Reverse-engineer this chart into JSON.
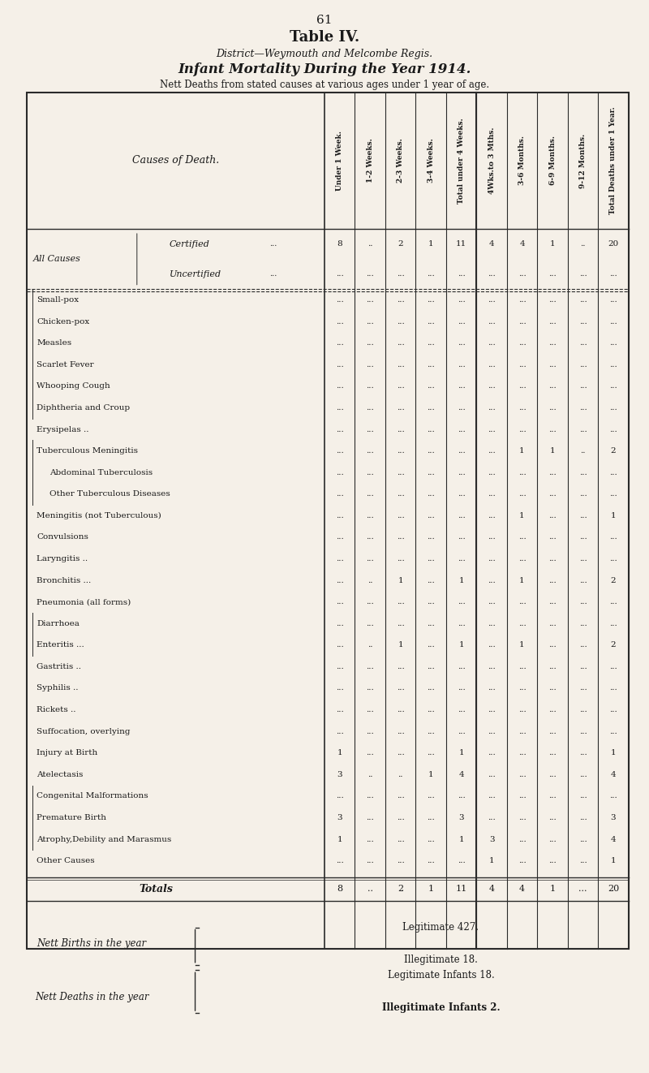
{
  "page_number": "61",
  "title1": "Table IV.",
  "title2": "District—Weymouth and Melcombe Regis.",
  "title3": "Infant Mortality During the Year 1914.",
  "subtitle": "Nett Deaths from stated causes at various ages under 1 year of age.",
  "col_headers": [
    "Under 1 Week.",
    "1-2 Weeks.",
    "2-3 Weeks.",
    "3-4 Weeks.",
    "Total under 4 Weeks.",
    "4Wks.to 3 Mths.",
    "3-6 Months.",
    "6-9 Months.",
    "9-12 Months.",
    "Total Deaths under 1 Year."
  ],
  "rows": [
    {
      "cause": "All Causes",
      "sub": "Certified",
      "dots_before": true,
      "values": [
        "8",
        "..",
        "2",
        "1",
        "11",
        "4",
        "4",
        "1",
        "..",
        "20"
      ]
    },
    {
      "cause": "",
      "sub": "Uncertified",
      "dots_before": true,
      "values": [
        "...",
        "...",
        "...",
        "...",
        "...",
        "...",
        "...",
        "...",
        "...",
        "..."
      ]
    },
    {
      "cause": "Small-pox",
      "sub": "",
      "dots_before": true,
      "values": [
        "...",
        "...",
        "...",
        "...",
        "...",
        "...",
        "...",
        "...",
        "...",
        "..."
      ]
    },
    {
      "cause": "Chicken-pox",
      "sub": "",
      "dots_before": true,
      "values": [
        "...",
        "...",
        "...",
        "...",
        "...",
        "...",
        "...",
        "...",
        "...",
        "..."
      ]
    },
    {
      "cause": "Measles",
      "sub": "",
      "dots_before": true,
      "values": [
        "...",
        "...",
        "...",
        "...",
        "...",
        "...",
        "...",
        "...",
        "...",
        "..."
      ]
    },
    {
      "cause": "Scarlet Fever",
      "sub": "",
      "dots_before": true,
      "values": [
        "...",
        "...",
        "...",
        "...",
        "...",
        "...",
        "...",
        "...",
        "...",
        "..."
      ]
    },
    {
      "cause": "Whooping Cough",
      "sub": "",
      "dots_before": true,
      "values": [
        "...",
        "...",
        "...",
        "...",
        "...",
        "...",
        "...",
        "...",
        "...",
        "..."
      ]
    },
    {
      "cause": "Diphtheria and Croup",
      "sub": "",
      "dots_before": true,
      "values": [
        "...",
        "...",
        "...",
        "...",
        "...",
        "...",
        "...",
        "...",
        "...",
        "..."
      ]
    },
    {
      "cause": "Erysipelas ..",
      "sub": "",
      "dots_before": true,
      "values": [
        "...",
        "...",
        "...",
        "...",
        "...",
        "...",
        "...",
        "...",
        "...",
        "..."
      ]
    },
    {
      "cause": "Tuberculous Meningitis",
      "sub": "",
      "dots_before": true,
      "values": [
        "...",
        "...",
        "...",
        "...",
        "...",
        "...",
        "1",
        "1",
        "..",
        "2"
      ]
    },
    {
      "cause": "Abdominal Tuberculosis",
      "sub": "",
      "dots_before": true,
      "values": [
        "...",
        "...",
        "...",
        "...",
        "...",
        "...",
        "...",
        "...",
        "...",
        "..."
      ]
    },
    {
      "cause": "Other Tuberculous Diseases",
      "sub": "",
      "dots_before": true,
      "values": [
        "...",
        "...",
        "...",
        "...",
        "...",
        "...",
        "...",
        "...",
        "...",
        "..."
      ]
    },
    {
      "cause": "Meningitis (not Tuberculous)",
      "sub": "",
      "dots_before": true,
      "values": [
        "...",
        "...",
        "...",
        "...",
        "...",
        "...",
        "1",
        "...",
        "...",
        "1"
      ]
    },
    {
      "cause": "Convulsions",
      "sub": "",
      "dots_before": true,
      "values": [
        "...",
        "...",
        "...",
        "...",
        "...",
        "...",
        "...",
        "...",
        "...",
        "..."
      ]
    },
    {
      "cause": "Laryngitis ..",
      "sub": "",
      "dots_before": true,
      "values": [
        "...",
        "...",
        "...",
        "...",
        "...",
        "...",
        "...",
        "...",
        "...",
        "..."
      ]
    },
    {
      "cause": "Bronchitis ...",
      "sub": "",
      "dots_before": true,
      "values": [
        "...",
        "..",
        "1",
        "...",
        "1",
        "...",
        "1",
        "...",
        "...",
        "2"
      ]
    },
    {
      "cause": "Pneumonia (all forms)",
      "sub": "",
      "dots_before": true,
      "values": [
        "...",
        "...",
        "...",
        "...",
        "...",
        "...",
        "...",
        "...",
        "...",
        "..."
      ]
    },
    {
      "cause": "Diarrhoea",
      "sub": "",
      "dots_before": true,
      "values": [
        "...",
        "...",
        "...",
        "...",
        "...",
        "...",
        "...",
        "...",
        "...",
        "..."
      ]
    },
    {
      "cause": "Enteritis ...",
      "sub": "",
      "dots_before": true,
      "values": [
        "...",
        "..",
        "1",
        "...",
        "1",
        "...",
        "1",
        "...",
        "...",
        "2"
      ]
    },
    {
      "cause": "Gastritis ..",
      "sub": "",
      "dots_before": true,
      "values": [
        "...",
        "...",
        "...",
        "...",
        "...",
        "...",
        "...",
        "...",
        "...",
        "..."
      ]
    },
    {
      "cause": "Syphilis ..",
      "sub": "",
      "dots_before": true,
      "values": [
        "...",
        "...",
        "...",
        "...",
        "...",
        "...",
        "...",
        "...",
        "...",
        "..."
      ]
    },
    {
      "cause": "Rickets ..",
      "sub": "",
      "dots_before": true,
      "values": [
        "...",
        "...",
        "...",
        "...",
        "...",
        "...",
        "...",
        "...",
        "...",
        "..."
      ]
    },
    {
      "cause": "Suffocation, overlying",
      "sub": "",
      "dots_before": true,
      "values": [
        "...",
        "...",
        "...",
        "...",
        "...",
        "...",
        "...",
        "...",
        "...",
        "..."
      ]
    },
    {
      "cause": "Injury at Birth",
      "sub": "",
      "dots_before": true,
      "values": [
        "1",
        "...",
        "...",
        "...",
        "1",
        "...",
        "...",
        "...",
        "...",
        "1"
      ]
    },
    {
      "cause": "Atelectasis",
      "sub": "",
      "dots_before": true,
      "values": [
        "3",
        "..",
        "..",
        "1",
        "4",
        "...",
        "...",
        "...",
        "...",
        "4"
      ]
    },
    {
      "cause": "Congenital Malformations",
      "sub": "",
      "dots_before": true,
      "values": [
        "...",
        "...",
        "...",
        "...",
        "...",
        "...",
        "...",
        "...",
        "...",
        "..."
      ]
    },
    {
      "cause": "Premature Birth",
      "sub": "",
      "dots_before": true,
      "values": [
        "3",
        "...",
        "...",
        "...",
        "3",
        "...",
        "...",
        "...",
        "...",
        "3"
      ]
    },
    {
      "cause": "Atrophy,Debility and Marasmus",
      "sub": "",
      "dots_before": true,
      "values": [
        "1",
        "...",
        "...",
        "...",
        "1",
        "3",
        "...",
        "...",
        "...",
        "4"
      ]
    },
    {
      "cause": "Other Causes",
      "sub": "",
      "dots_before": true,
      "values": [
        "...",
        "...",
        "...",
        "...",
        "...",
        "1",
        "...",
        "...",
        "...",
        "1"
      ]
    }
  ],
  "totals_row": {
    "label": "Totals",
    "values": [
      "8",
      "..",
      "2",
      "1",
      "11",
      "4",
      "4",
      "1",
      "...",
      "20"
    ]
  },
  "footer1": "Nett Births in the year",
  "footer1a": "Legitimate 427.",
  "footer1b": "Illegitimate 18.",
  "footer2": "Nett Deaths in the year",
  "footer2a": "Legitimate Infants 18.",
  "footer2b": "Illegitimate Infants 2.",
  "bg_color": "#f5f0e8",
  "text_color": "#1a1a1a",
  "line_color": "#2a2a2a"
}
